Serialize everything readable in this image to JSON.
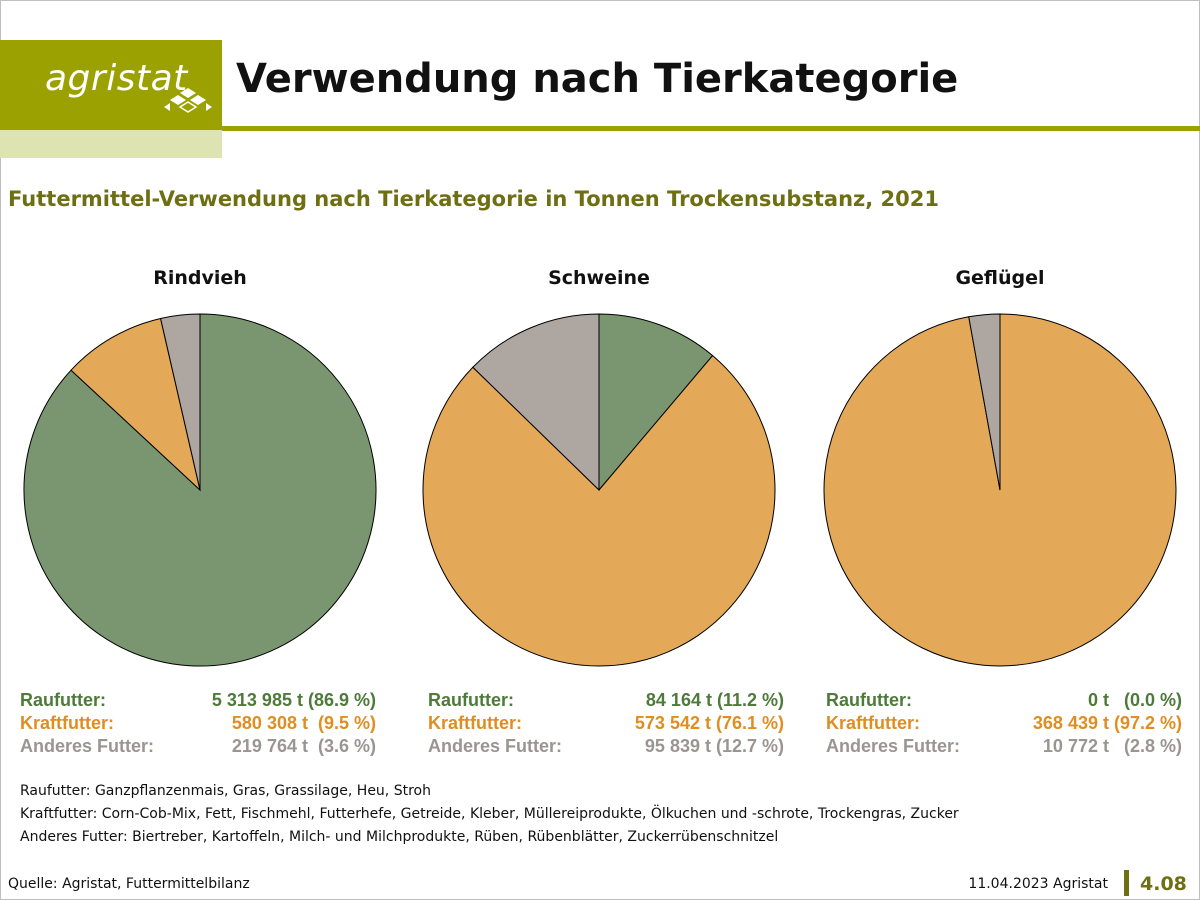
{
  "header": {
    "logo_text": "agristat",
    "title": "Verwendung nach Tierkategorie"
  },
  "subtitle": "Futtermittel-Verwendung nach Tierkategorie in Tonnen Trockensubstanz, 2021",
  "colors": {
    "raufutter": "#7a9670",
    "kraftfutter": "#e3a958",
    "anderes": "#aea6a1",
    "accent": "#9aa101",
    "accent_dark": "#6e6e13"
  },
  "chart_data": [
    {
      "type": "pie",
      "title": "Rindvieh",
      "labels": [
        "Raufutter:",
        "Kraftfutter:",
        "Anderes Futter:"
      ],
      "values": [
        5313985,
        580308,
        219764
      ],
      "percent": [
        86.9,
        9.5,
        3.6
      ],
      "display": [
        "5 313 985 t (86.9 %)",
        "580 308 t  (9.5 %)",
        "219 764 t  (3.6 %)"
      ]
    },
    {
      "type": "pie",
      "title": "Schweine",
      "labels": [
        "Raufutter:",
        "Kraftfutter:",
        "Anderes Futter:"
      ],
      "values": [
        84164,
        573542,
        95839
      ],
      "percent": [
        11.2,
        76.1,
        12.7
      ],
      "display": [
        "84 164 t (11.2 %)",
        "573 542 t (76.1 %)",
        "95 839 t (12.7 %)"
      ]
    },
    {
      "type": "pie",
      "title": "Geflügel",
      "labels": [
        "Raufutter:",
        "Kraftfutter:",
        "Anderes Futter:"
      ],
      "values": [
        0,
        368439,
        10772
      ],
      "percent": [
        0.0,
        97.2,
        2.8
      ],
      "display": [
        "0 t   (0.0 %)",
        "368 439 t (97.2 %)",
        "10 772 t   (2.8 %)"
      ]
    }
  ],
  "notes": [
    "Raufutter: Ganzpflanzenmais, Gras, Grassilage, Heu, Stroh",
    "Kraftfutter: Corn-Cob-Mix, Fett, Fischmehl, Futterhefe, Getreide, Kleber, Müllereiprodukte, Ölkuchen und -schrote, Trockengras, Zucker",
    "Anderes Futter: Biertreber, Kartoffeln, Milch- und Milchprodukte, Rüben, Rübenblätter, Zuckerrübenschnitzel"
  ],
  "footer": {
    "source": "Quelle: Agristat, Futtermittelbilanz",
    "date": "11.04.2023 Agristat",
    "page": "4.08"
  }
}
